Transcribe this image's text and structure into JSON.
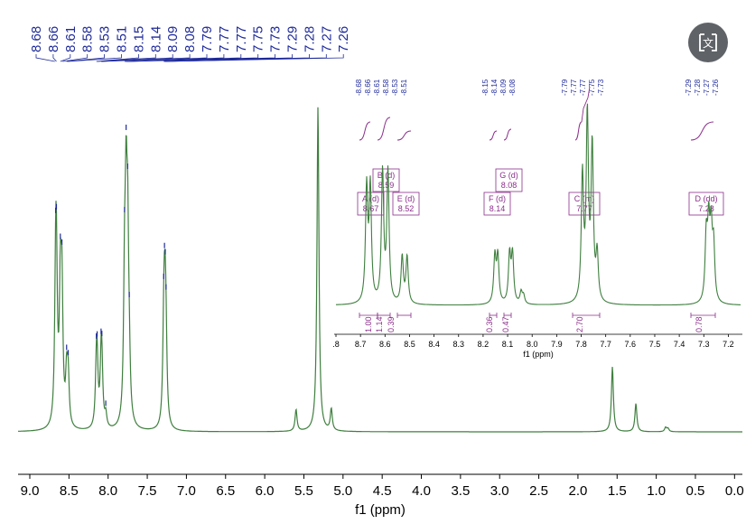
{
  "colors": {
    "spectrum": "#3f7f3f",
    "peak_labels": "#1e2a9a",
    "integral": "#8b2f8b",
    "axis": "#000000",
    "button": "#5f6368"
  },
  "translate_button": {
    "icon": "translate-icon"
  },
  "chart_data": [
    {
      "type": "line",
      "name": "main-spectrum",
      "xlabel": "f1 (ppm)",
      "xlim": [
        9.15,
        -0.1
      ],
      "reversed_x": true,
      "xticks": [
        "9.0",
        "8.5",
        "8.0",
        "7.5",
        "7.0",
        "6.5",
        "6.0",
        "5.5",
        "5.0",
        "4.5",
        "4.0",
        "3.5",
        "3.0",
        "2.5",
        "2.0",
        "1.5",
        "1.0",
        "0.5",
        "0.0"
      ],
      "peak_labels": [
        "8.68",
        "8.66",
        "8.61",
        "8.58",
        "8.53",
        "8.51",
        "8.15",
        "8.14",
        "8.09",
        "8.08",
        "7.79",
        "7.77",
        "7.77",
        "7.75",
        "7.73",
        "7.29",
        "7.28",
        "7.27",
        "7.26"
      ],
      "peaks": [
        {
          "x": 8.67,
          "y": 0.56
        },
        {
          "x": 8.66,
          "y": 0.55
        },
        {
          "x": 8.61,
          "y": 0.58
        },
        {
          "x": 8.59,
          "y": 0.58
        },
        {
          "x": 8.53,
          "y": 0.22
        },
        {
          "x": 8.51,
          "y": 0.22
        },
        {
          "x": 8.15,
          "y": 0.23
        },
        {
          "x": 8.14,
          "y": 0.23
        },
        {
          "x": 8.09,
          "y": 0.24
        },
        {
          "x": 8.08,
          "y": 0.23
        },
        {
          "x": 8.03,
          "y": 0.06
        },
        {
          "x": 7.79,
          "y": 0.58
        },
        {
          "x": 7.77,
          "y": 0.88
        },
        {
          "x": 7.75,
          "y": 0.74
        },
        {
          "x": 7.73,
          "y": 0.2
        },
        {
          "x": 7.29,
          "y": 0.31
        },
        {
          "x": 7.28,
          "y": 0.33
        },
        {
          "x": 7.27,
          "y": 0.28
        },
        {
          "x": 7.26,
          "y": 0.27
        },
        {
          "x": 5.6,
          "y": 0.1
        },
        {
          "x": 5.32,
          "y": 1.5
        },
        {
          "x": 5.15,
          "y": 0.1
        },
        {
          "x": 1.56,
          "y": 0.3
        },
        {
          "x": 1.26,
          "y": 0.13
        },
        {
          "x": 0.88,
          "y": 0.02
        },
        {
          "x": 0.85,
          "y": 0.015
        }
      ]
    },
    {
      "type": "line",
      "name": "inset-expansion",
      "xlabel": "f1 (ppm)",
      "xlim": [
        8.8,
        7.15
      ],
      "reversed_x": true,
      "xticks": [
        ".8",
        "8.7",
        "8.6",
        "8.5",
        "8.4",
        "8.3",
        "8.2",
        "8.1",
        "8.0",
        "7.9",
        "7.8",
        "7.7",
        "7.6",
        "7.5",
        "7.4",
        "7.3",
        "7.2"
      ],
      "peak_label_groups": [
        {
          "labels": [
            "8.68",
            "8.66",
            "8.61",
            "8.58",
            "8.53",
            "8.51"
          ]
        },
        {
          "labels": [
            "8.15",
            "8.14",
            "8.09",
            "8.08"
          ]
        },
        {
          "labels": [
            "7.79",
            "7.77",
            "7.77",
            "7.75",
            "7.73"
          ]
        },
        {
          "labels": [
            "7.29",
            "7.28",
            "7.27",
            "7.26"
          ]
        }
      ],
      "multiplets": [
        {
          "letter": "A (d)",
          "shift": "8.67"
        },
        {
          "letter": "B (d)",
          "shift": "8.59"
        },
        {
          "letter": "E (d)",
          "shift": "8.52"
        },
        {
          "letter": "F (d)",
          "shift": "8.14"
        },
        {
          "letter": "G (d)",
          "shift": "8.08"
        },
        {
          "letter": "C (m)",
          "shift": "7.77"
        },
        {
          "letter": "D (dd)",
          "shift": "7.28"
        }
      ],
      "integrals": [
        "1.00",
        "1.14",
        "0.39",
        "0.36",
        "0.47",
        "2.70",
        "0.78"
      ],
      "peaks": [
        {
          "x": 8.675,
          "y": 0.68
        },
        {
          "x": 8.66,
          "y": 0.68
        },
        {
          "x": 8.61,
          "y": 0.78
        },
        {
          "x": 8.588,
          "y": 0.78
        },
        {
          "x": 8.53,
          "y": 0.28
        },
        {
          "x": 8.51,
          "y": 0.28
        },
        {
          "x": 8.152,
          "y": 0.28
        },
        {
          "x": 8.14,
          "y": 0.28
        },
        {
          "x": 8.092,
          "y": 0.29
        },
        {
          "x": 8.08,
          "y": 0.29
        },
        {
          "x": 8.045,
          "y": 0.07
        },
        {
          "x": 8.035,
          "y": 0.05
        },
        {
          "x": 7.795,
          "y": 0.75
        },
        {
          "x": 7.775,
          "y": 1.1
        },
        {
          "x": 7.755,
          "y": 0.92
        },
        {
          "x": 7.735,
          "y": 0.28
        },
        {
          "x": 7.29,
          "y": 0.38
        },
        {
          "x": 7.28,
          "y": 0.42
        },
        {
          "x": 7.27,
          "y": 0.4
        },
        {
          "x": 7.26,
          "y": 0.32
        }
      ]
    }
  ]
}
